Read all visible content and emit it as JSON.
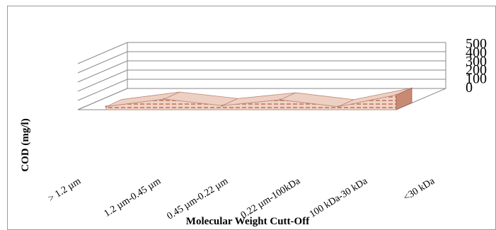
{
  "chart_data": {
    "type": "area",
    "style": "3d",
    "categories": [
      "> 1.2 µm",
      "1.2 µm-0.45 µm",
      "0.45 µm-0.22 µm",
      "0.22 µm-100kDa",
      "100 kDa-30 kDa",
      "<30 kDa"
    ],
    "values": [
      62,
      210,
      80,
      195,
      60,
      290
    ],
    "xlabel": "Molecular Weight Cutt-Off",
    "ylabel": "COD (mg/l)",
    "ylim": [
      0,
      500
    ],
    "yticks": [
      "0",
      "100",
      "200",
      "300",
      "400",
      "500"
    ],
    "grid": true,
    "legend": "none",
    "colors": {
      "fill": "#e8b09c",
      "hatch": "#c98a74",
      "gridline": "#8a8a8a"
    }
  }
}
